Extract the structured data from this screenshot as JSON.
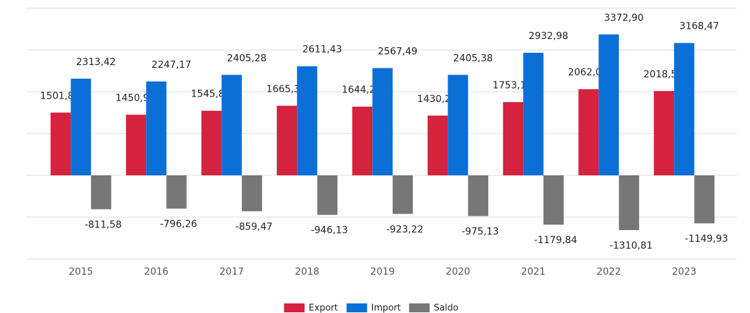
{
  "chart_data": {
    "type": "bar",
    "categories": [
      "2015",
      "2016",
      "2017",
      "2018",
      "2019",
      "2020",
      "2021",
      "2022",
      "2023"
    ],
    "series": [
      {
        "name": "Export",
        "color": "#d5223f",
        "values": [
          1501.85,
          1450.91,
          1545.81,
          1665.3,
          1644.28,
          1430.25,
          1753.14,
          2062.09,
          2018.54
        ],
        "value_labels": [
          "1501,85",
          "1450,91",
          "1545,81",
          "1665,30",
          "1644,28",
          "1430,25",
          "1753,14",
          "2062,09",
          "2018,54"
        ]
      },
      {
        "name": "Import",
        "color": "#0b6fd8",
        "values": [
          2313.42,
          2247.17,
          2405.28,
          2611.43,
          2567.49,
          2405.38,
          2932.98,
          3372.9,
          3168.47
        ],
        "value_labels": [
          "2313,42",
          "2247,17",
          "2405,28",
          "2611,43",
          "2567,49",
          "2405,38",
          "2932,98",
          "3372,90",
          "3168,47"
        ]
      },
      {
        "name": "Saldo",
        "color": "#777777",
        "values": [
          -811.58,
          -796.26,
          -859.47,
          -946.13,
          -923.22,
          -975.13,
          -1179.84,
          -1310.81,
          -1149.93
        ],
        "value_labels": [
          "-811,58",
          "-796,26",
          "-859,47",
          "-946,13",
          "-923,22",
          "-975,13",
          "-1179,84",
          "-1310,81",
          "-1149,93"
        ]
      }
    ],
    "ylim": [
      -2000,
      4000
    ],
    "yticks": [
      -2000,
      -1000,
      0,
      1000,
      2000,
      3000,
      4000
    ],
    "grid": true,
    "legend": "bottom"
  }
}
